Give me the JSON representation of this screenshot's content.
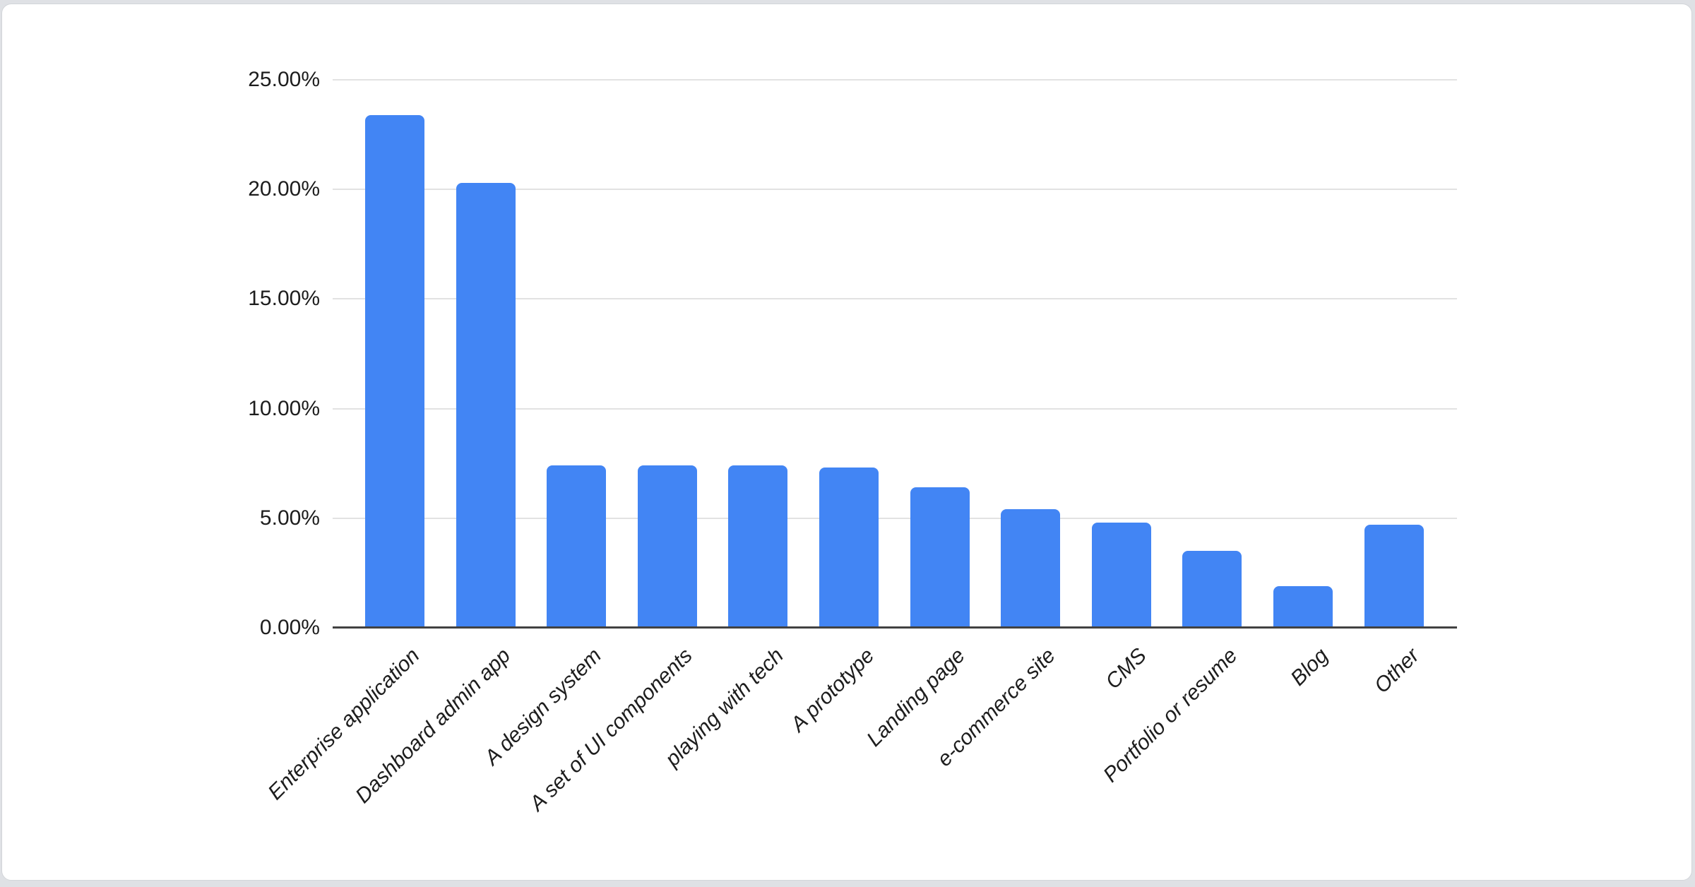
{
  "page": {
    "background_color": "#dfe1e5",
    "card_background_color": "#ffffff"
  },
  "chart_data": {
    "type": "bar",
    "title": "",
    "xlabel": "",
    "ylabel": "",
    "categories": [
      "Enterprise application",
      "Dashboard admin app",
      "A design system",
      "A set of UI components",
      "playing with tech",
      "A prototype",
      "Landing page",
      "e-commerce site",
      "CMS",
      "Portfolio or resume",
      "Blog",
      "Other"
    ],
    "values": [
      23.4,
      20.3,
      7.4,
      7.4,
      7.4,
      7.3,
      6.4,
      5.4,
      4.8,
      3.5,
      1.9,
      4.7
    ],
    "value_unit": "%",
    "ylim": [
      0,
      25
    ],
    "y_tick_interval": 5,
    "y_tick_labels": [
      "0.00%",
      "5.00%",
      "10.00%",
      "15.00%",
      "20.00%",
      "25.00%"
    ],
    "grid": true,
    "legend": false,
    "bar_color": "#4285f4",
    "baseline_color": "#424242",
    "gridline_color": "#e2e2e2",
    "tick_label_color": "#1d1d1d",
    "x_label_style": "italic",
    "x_label_rotation_deg": -45
  }
}
